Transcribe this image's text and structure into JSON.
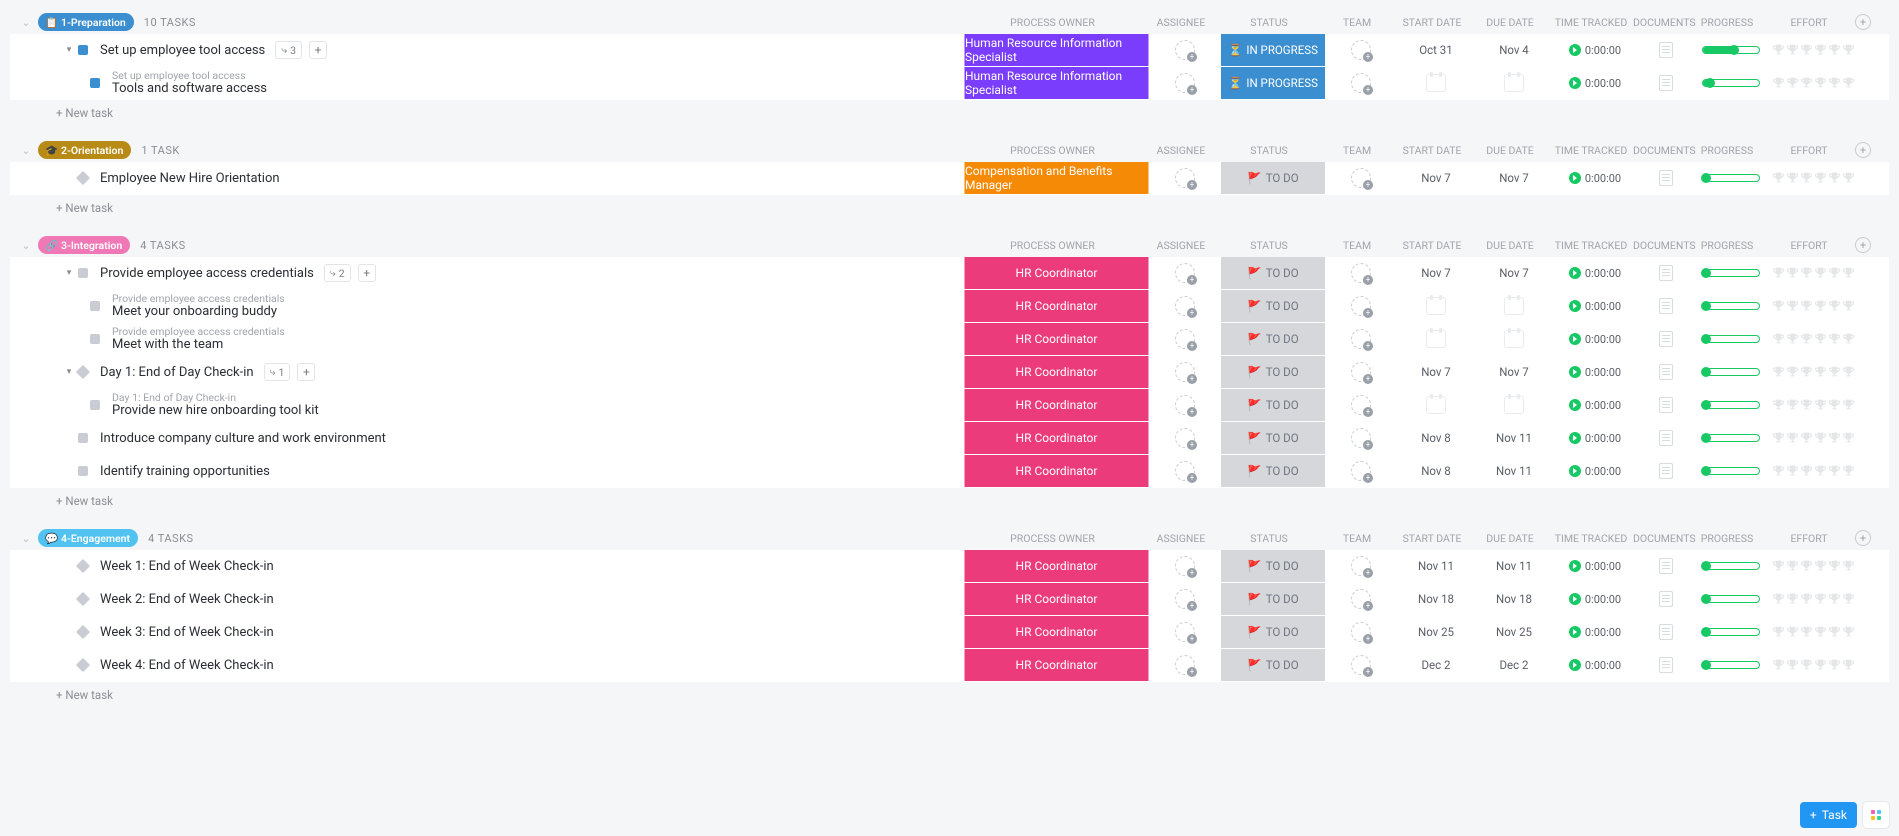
{
  "columns": {
    "owner": "PROCESS OWNER",
    "assignee": "ASSIGNEE",
    "status": "STATUS",
    "team": "TEAM",
    "start": "START DATE",
    "due": "DUE DATE",
    "time": "TIME TRACKED",
    "docs": "DOCUMENTS",
    "progress": "PROGRESS",
    "effort": "EFFORT"
  },
  "owners": {
    "hris": {
      "label": "Human Resource Information Specialist",
      "bg": "#7a3dfb"
    },
    "cbm": {
      "label": "Compensation and Benefits Manager",
      "bg": "#f58a07"
    },
    "hrc": {
      "label": "HR Coordinator",
      "bg": "#eb3b7a"
    }
  },
  "statuses": {
    "in_progress": {
      "label": "IN PROGRESS",
      "bg": "#3b8ecf",
      "fg": "#ffffff",
      "icon": "⏳"
    },
    "to_do": {
      "label": "TO DO",
      "bg": "#d5d7db",
      "fg": "#707580",
      "icon": "🚩"
    }
  },
  "time_default": "0:00:00",
  "new_task_label": "+ New task",
  "fab_task_label": "Task",
  "groups": [
    {
      "id": "prep",
      "name": "1-Preparation",
      "badge_bg": "#3b8ecf",
      "icon": "📋",
      "task_count": "10 TASKS",
      "rows": [
        {
          "type": "task",
          "title": "Set up employee tool access",
          "owner": "hris",
          "status": "in_progress",
          "start": "Oct 31",
          "due": "Nov 4",
          "progress": 55,
          "dot": "#3b8ecf",
          "dot_shape": "square",
          "expand": "▾",
          "subtasks": 3,
          "plus": true
        },
        {
          "type": "sub",
          "parent": "Set up employee tool access",
          "title": "Tools and software access",
          "owner": "hris",
          "status": "in_progress",
          "progress": 12,
          "dot": "#3b8ecf",
          "dot_shape": "square"
        }
      ],
      "show_new_task": true
    },
    {
      "id": "orient",
      "name": "2-Orientation",
      "badge_bg": "#b78b16",
      "icon": "🎓",
      "task_count": "1 TASK",
      "rows": [
        {
          "type": "task",
          "title": "Employee New Hire Orientation",
          "owner": "cbm",
          "status": "to_do",
          "start": "Nov 7",
          "due": "Nov 7",
          "progress": 5,
          "dot": "#c9ccd2",
          "dot_shape": "diamond"
        }
      ],
      "show_new_task": true
    },
    {
      "id": "integ",
      "name": "3-Integration",
      "badge_bg": "#f178b6",
      "icon": "🔗",
      "task_count": "4 TASKS",
      "rows": [
        {
          "type": "task",
          "title": "Provide employee access credentials",
          "owner": "hrc",
          "status": "to_do",
          "start": "Nov 7",
          "due": "Nov 7",
          "progress": 5,
          "dot": "#c9ccd2",
          "dot_shape": "square",
          "expand": "▾",
          "subtasks": 2,
          "plus": true
        },
        {
          "type": "sub",
          "parent": "Provide employee access credentials",
          "title": "Meet your onboarding buddy",
          "owner": "hrc",
          "status": "to_do",
          "progress": 5,
          "dot": "#c9ccd2",
          "dot_shape": "square"
        },
        {
          "type": "sub",
          "parent": "Provide employee access credentials",
          "title": "Meet with the team",
          "owner": "hrc",
          "status": "to_do",
          "progress": 5,
          "dot": "#c9ccd2",
          "dot_shape": "square"
        },
        {
          "type": "task",
          "title": "Day 1: End of Day Check-in",
          "owner": "hrc",
          "status": "to_do",
          "start": "Nov 7",
          "due": "Nov 7",
          "progress": 5,
          "dot": "#c9ccd2",
          "dot_shape": "diamond",
          "expand": "▾",
          "subtasks": 1,
          "plus": true
        },
        {
          "type": "sub",
          "parent": "Day 1: End of Day Check-in",
          "title": "Provide new hire onboarding tool kit",
          "owner": "hrc",
          "status": "to_do",
          "progress": 5,
          "dot": "#c9ccd2",
          "dot_shape": "square"
        },
        {
          "type": "task",
          "title": "Introduce company culture and work environment",
          "owner": "hrc",
          "status": "to_do",
          "start": "Nov 8",
          "due": "Nov 11",
          "progress": 5,
          "dot": "#c9ccd2",
          "dot_shape": "square"
        },
        {
          "type": "task",
          "title": "Identify training opportunities",
          "owner": "hrc",
          "status": "to_do",
          "start": "Nov 8",
          "due": "Nov 11",
          "progress": 5,
          "dot": "#c9ccd2",
          "dot_shape": "square"
        }
      ],
      "show_new_task": true
    },
    {
      "id": "engage",
      "name": "4-Engagement",
      "badge_bg": "#52c3f1",
      "icon": "💬",
      "task_count": "4 TASKS",
      "rows": [
        {
          "type": "task",
          "title": "Week 1: End of Week Check-in",
          "owner": "hrc",
          "status": "to_do",
          "start": "Nov 11",
          "due": "Nov 11",
          "progress": 5,
          "dot": "#c9ccd2",
          "dot_shape": "diamond"
        },
        {
          "type": "task",
          "title": "Week 2: End of Week Check-in",
          "owner": "hrc",
          "status": "to_do",
          "start": "Nov 18",
          "due": "Nov 18",
          "progress": 5,
          "dot": "#c9ccd2",
          "dot_shape": "diamond"
        },
        {
          "type": "task",
          "title": "Week 3: End of Week Check-in",
          "owner": "hrc",
          "status": "to_do",
          "start": "Nov 25",
          "due": "Nov 25",
          "progress": 5,
          "dot": "#c9ccd2",
          "dot_shape": "diamond"
        },
        {
          "type": "task",
          "title": "Week 4: End of Week Check-in",
          "owner": "hrc",
          "status": "to_do",
          "start": "Dec 2",
          "due": "Dec 2",
          "progress": 5,
          "dot": "#c9ccd2",
          "dot_shape": "diamond"
        }
      ],
      "show_new_task": true
    }
  ]
}
